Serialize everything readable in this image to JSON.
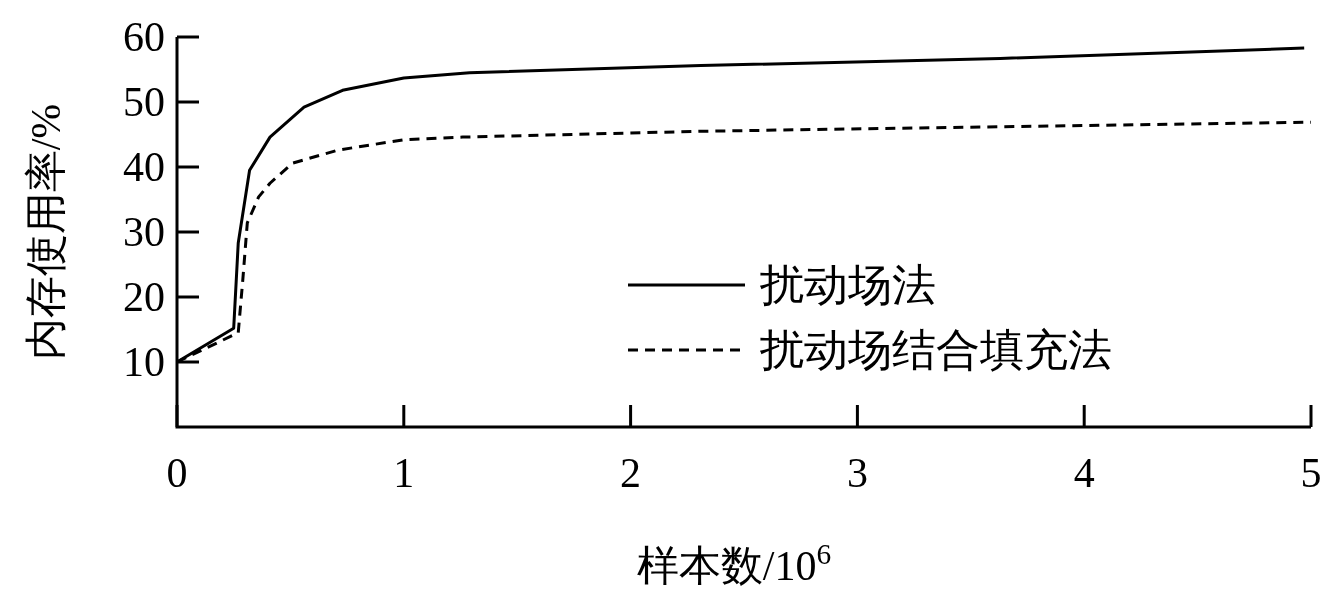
{
  "chart_data": {
    "type": "line",
    "xlabel": "样本数/10$^{6}$",
    "ylabel": "内存使用率/%",
    "xlim": [
      0,
      5
    ],
    "ylim": [
      0,
      60
    ],
    "xticks": [
      0,
      1,
      2,
      3,
      4,
      5
    ],
    "yticks": [
      10,
      20,
      30,
      40,
      50,
      60
    ],
    "grid": false,
    "legend": "right",
    "marker": "none",
    "series": [
      {
        "name": "扰动场法",
        "color": "#000000",
        "line_style": "solid",
        "x": [
          0,
          0.25,
          0.27,
          0.32,
          0.41,
          0.56,
          0.73,
          1.0,
          1.29,
          2.31,
          3.63,
          4.97
        ],
        "values": [
          10,
          15.2,
          28.3,
          39.5,
          44.6,
          49.2,
          51.8,
          53.7,
          54.5,
          55.6,
          56.7,
          58.3
        ]
      },
      {
        "name": "扰动场结合填充法",
        "color": "#000000",
        "line_style": "dashed",
        "x": [
          0,
          0.27,
          0.29,
          0.31,
          0.36,
          0.41,
          0.51,
          0.71,
          1.0,
          1.26,
          2.31,
          5.0
        ],
        "values": [
          10,
          14.5,
          22.6,
          31.4,
          35.4,
          37.5,
          40.6,
          42.6,
          44.2,
          44.6,
          45.5,
          46.9
        ]
      }
    ]
  }
}
